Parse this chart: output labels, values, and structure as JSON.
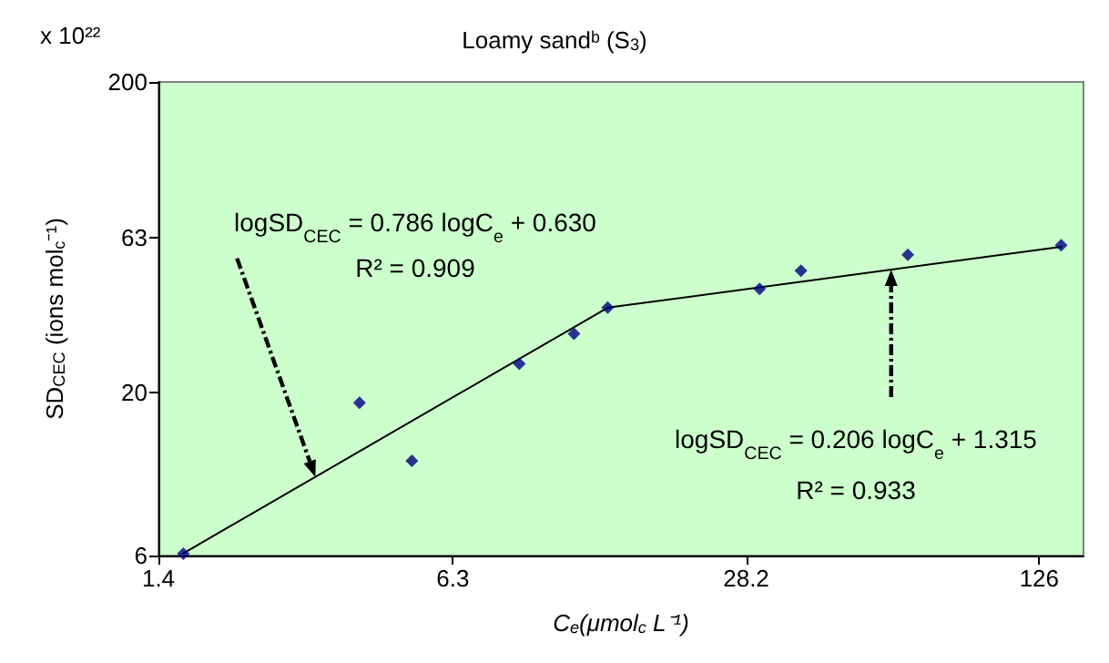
{
  "chart_data": {
    "type": "scatter",
    "title": "Loamy sandᵇ (S$_{3}$)",
    "xlabel": "C$_{e}$(μmol$_{c}$ L⁻¹)",
    "ylabel": "SD$_{CEC}$ (ions mol$_{c}$⁻¹)",
    "log": "xy",
    "xlim": [
      1.4,
      158
    ],
    "xticks": [
      1.4,
      6.3,
      28.2,
      126
    ],
    "ylim": [
      6,
      200
    ],
    "yticks": [
      6,
      20,
      63,
      200
    ],
    "grid": false,
    "marker": "diamond",
    "series": [
      {
        "color": "#000080",
        "x": [
          1.59,
          3.91,
          5.11,
          8.85,
          11.7,
          13.9,
          30.2,
          37.3,
          64.4,
          141
        ],
        "values": [
          6.08,
          18.6,
          12.1,
          24.8,
          31.0,
          37.6,
          43.2,
          49.4,
          55.6,
          59.7
        ]
      },
      {
        "type": "line",
        "color": "#000000",
        "marker": "none",
        "x": [
          1.59,
          13.9
        ],
        "values": [
          6.1,
          37.6
        ]
      },
      {
        "type": "line",
        "color": "#000000",
        "marker": "none",
        "x": [
          13.9,
          141
        ],
        "values": [
          37.6,
          59
        ]
      }
    ],
    "annotations": [
      "x 10²²",
      "logSD$_{CEC}$ = 0.786 logC$_{e}$ + 0.630",
      "R² = 0.909",
      "logSD$_{CEC}$ = 0.206 logC$_{e}$ + 1.315",
      "R² = 0.933"
    ]
  }
}
